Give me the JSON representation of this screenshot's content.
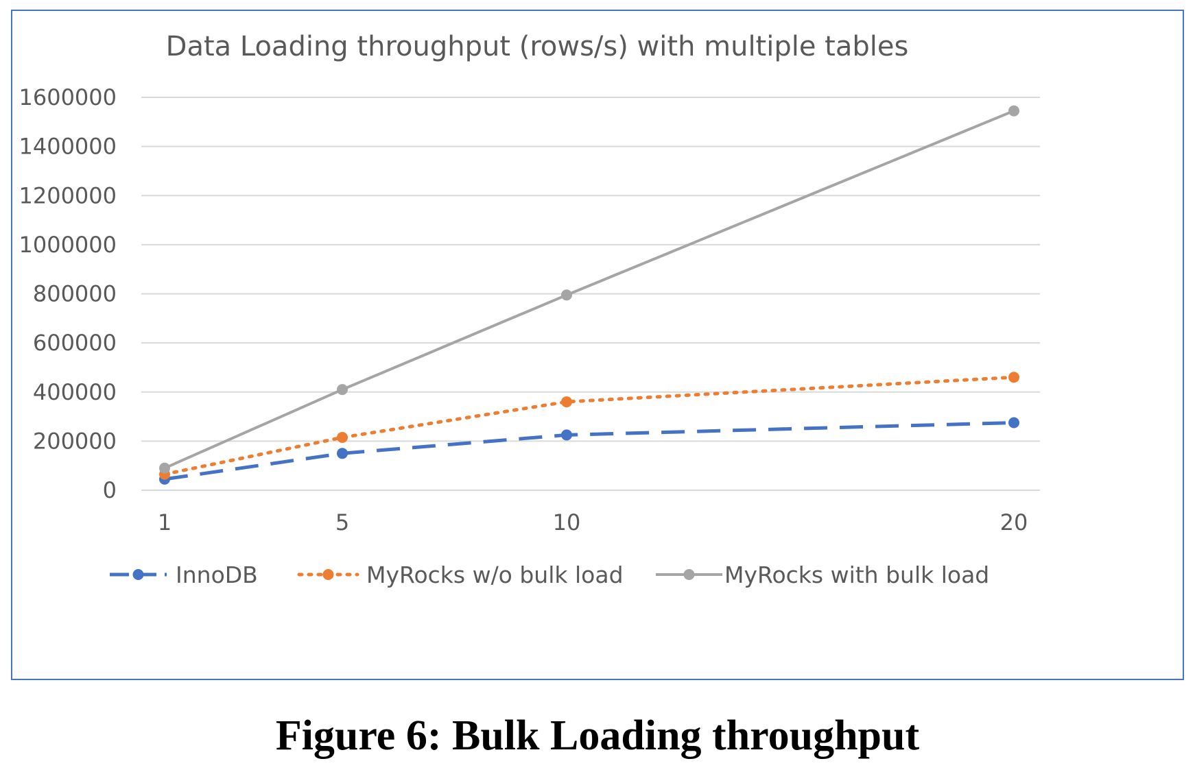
{
  "chart_data": {
    "type": "line",
    "title": "Data Loading throughput (rows/s) with multiple tables",
    "xlabel": "",
    "ylabel": "",
    "x": [
      "1",
      "5",
      "10",
      "20"
    ],
    "ylim": [
      0,
      1600000
    ],
    "yticks": [
      "0",
      "200000",
      "400000",
      "600000",
      "800000",
      "1000000",
      "1200000",
      "1400000",
      "1600000"
    ],
    "grid": true,
    "legend_position": "bottom",
    "series": [
      {
        "name": "InnoDB",
        "values": [
          45000,
          150000,
          225000,
          275000
        ],
        "color": "#4472c4",
        "dash": "dashed"
      },
      {
        "name": "MyRocks w/o bulk load",
        "values": [
          65000,
          215000,
          360000,
          460000
        ],
        "color": "#ed7d31",
        "dash": "dotted"
      },
      {
        "name": "MyRocks with bulk load",
        "values": [
          90000,
          410000,
          795000,
          1545000
        ],
        "color": "#a5a5a5",
        "dash": "solid"
      }
    ]
  },
  "caption": "Figure 6: Bulk Loading throughput"
}
